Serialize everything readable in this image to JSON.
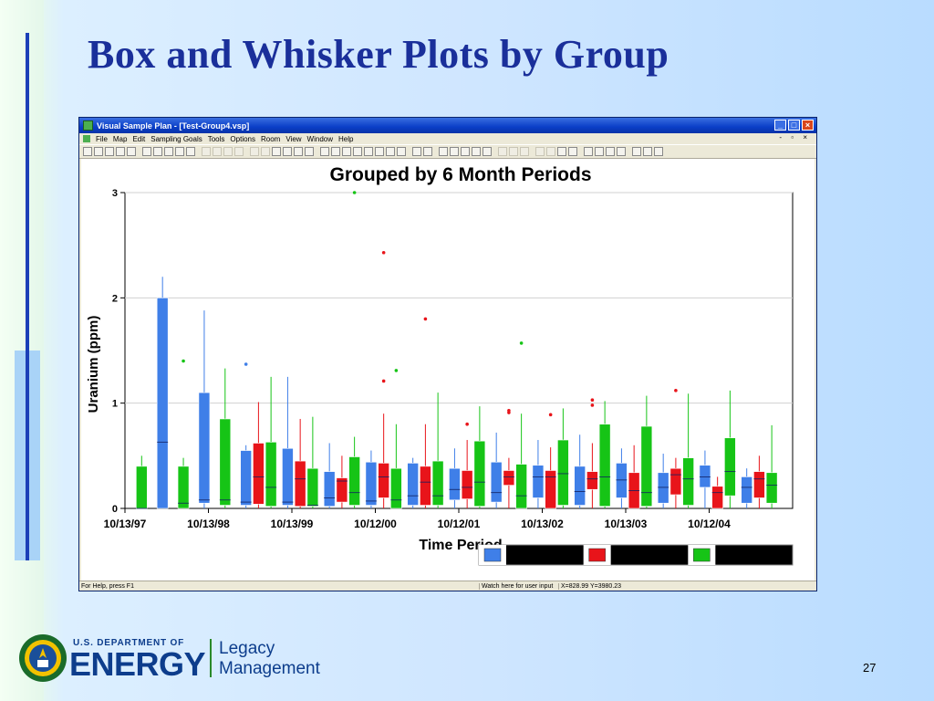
{
  "slide": {
    "title": "Box and Whisker Plots by Group",
    "page_number": "27",
    "footer": {
      "dept_small": "U.S. DEPARTMENT OF",
      "dept_big": "ENERGY",
      "legacy_line1": "Legacy",
      "legacy_line2": "Management"
    }
  },
  "window": {
    "title": "Visual Sample Plan - [Test-Group4.vsp]",
    "menus": [
      "File",
      "Map",
      "Edit",
      "Sampling Goals",
      "Tools",
      "Options",
      "Room",
      "View",
      "Window",
      "Help"
    ],
    "status": {
      "help": "For Help, press F1",
      "input": "Watch here for user input",
      "coords": "X=828.99 Y=3980.23"
    }
  },
  "colors": {
    "blue": "#3f7fe8",
    "red": "#e8141a",
    "green": "#16c416",
    "title_blue": "#1a2f9a"
  },
  "chart_data": {
    "type": "box",
    "title": "Grouped by 6 Month Periods",
    "xlabel": "Time Period",
    "ylabel": "Uranium (ppm)",
    "ylim": [
      0,
      3
    ],
    "yticks": [
      0,
      1,
      2,
      3
    ],
    "xticks": [
      "10/13/97",
      "10/13/98",
      "10/13/99",
      "10/12/00",
      "10/12/01",
      "10/13/02",
      "10/13/03",
      "10/12/04"
    ],
    "x_range": [
      0,
      16
    ],
    "grid": "horizontal",
    "legend_position": "bottom-right",
    "series_colors": [
      "blue",
      "red",
      "green"
    ],
    "boxes": [
      {
        "x": 0.4,
        "g": "green",
        "min": 0.0,
        "q1": 0.0,
        "med": 0.0,
        "q3": 0.4,
        "max": 0.5,
        "out": []
      },
      {
        "x": 0.9,
        "g": "blue",
        "min": 0.0,
        "q1": 0.0,
        "med": 0.63,
        "q3": 2.0,
        "max": 2.2,
        "out": []
      },
      {
        "x": 1.4,
        "g": "green",
        "min": 0.0,
        "q1": 0.0,
        "med": 0.05,
        "q3": 0.4,
        "max": 0.48,
        "out": [
          1.4
        ]
      },
      {
        "x": 1.9,
        "g": "blue",
        "min": 0.0,
        "q1": 0.05,
        "med": 0.08,
        "q3": 1.1,
        "max": 1.88,
        "out": []
      },
      {
        "x": 2.4,
        "g": "green",
        "min": 0.0,
        "q1": 0.03,
        "med": 0.08,
        "q3": 0.85,
        "max": 1.33,
        "out": []
      },
      {
        "x": 2.9,
        "g": "blue",
        "min": 0.0,
        "q1": 0.03,
        "med": 0.06,
        "q3": 0.55,
        "max": 0.6,
        "out": [
          1.37
        ]
      },
      {
        "x": 3.2,
        "g": "red",
        "min": 0.0,
        "q1": 0.04,
        "med": 0.3,
        "q3": 0.62,
        "max": 1.01,
        "out": []
      },
      {
        "x": 3.5,
        "g": "green",
        "min": 0.0,
        "q1": 0.02,
        "med": 0.2,
        "q3": 0.63,
        "max": 1.25,
        "out": []
      },
      {
        "x": 3.9,
        "g": "blue",
        "min": 0.0,
        "q1": 0.03,
        "med": 0.06,
        "q3": 0.57,
        "max": 1.25,
        "out": []
      },
      {
        "x": 4.2,
        "g": "red",
        "min": 0.0,
        "q1": 0.02,
        "med": 0.28,
        "q3": 0.45,
        "max": 0.85,
        "out": []
      },
      {
        "x": 4.5,
        "g": "green",
        "min": 0.0,
        "q1": 0.02,
        "med": 0.03,
        "q3": 0.38,
        "max": 0.87,
        "out": []
      },
      {
        "x": 4.9,
        "g": "blue",
        "min": 0.0,
        "q1": 0.02,
        "med": 0.1,
        "q3": 0.35,
        "max": 0.62,
        "out": []
      },
      {
        "x": 5.2,
        "g": "red",
        "min": 0.0,
        "q1": 0.06,
        "med": 0.26,
        "q3": 0.29,
        "max": 0.5,
        "out": []
      },
      {
        "x": 5.5,
        "g": "green",
        "min": 0.0,
        "q1": 0.03,
        "med": 0.15,
        "q3": 0.49,
        "max": 0.68,
        "out": [
          3.0
        ]
      },
      {
        "x": 5.9,
        "g": "blue",
        "min": 0.0,
        "q1": 0.03,
        "med": 0.07,
        "q3": 0.44,
        "max": 0.55,
        "out": []
      },
      {
        "x": 6.2,
        "g": "red",
        "min": 0.0,
        "q1": 0.1,
        "med": 0.3,
        "q3": 0.43,
        "max": 0.9,
        "out": [
          2.43,
          1.21
        ]
      },
      {
        "x": 6.5,
        "g": "green",
        "min": 0.0,
        "q1": 0.0,
        "med": 0.08,
        "q3": 0.38,
        "max": 0.8,
        "out": [
          1.31
        ]
      },
      {
        "x": 6.9,
        "g": "blue",
        "min": 0.0,
        "q1": 0.03,
        "med": 0.12,
        "q3": 0.43,
        "max": 0.48,
        "out": []
      },
      {
        "x": 7.2,
        "g": "red",
        "min": 0.0,
        "q1": 0.03,
        "med": 0.25,
        "q3": 0.4,
        "max": 0.8,
        "out": [
          1.8
        ]
      },
      {
        "x": 7.5,
        "g": "green",
        "min": 0.0,
        "q1": 0.03,
        "med": 0.12,
        "q3": 0.45,
        "max": 1.1,
        "out": []
      },
      {
        "x": 7.9,
        "g": "blue",
        "min": 0.0,
        "q1": 0.08,
        "med": 0.18,
        "q3": 0.38,
        "max": 0.57,
        "out": []
      },
      {
        "x": 8.2,
        "g": "red",
        "min": 0.0,
        "q1": 0.09,
        "med": 0.2,
        "q3": 0.36,
        "max": 0.65,
        "out": [
          0.8
        ]
      },
      {
        "x": 8.5,
        "g": "green",
        "min": 0.0,
        "q1": 0.02,
        "med": 0.25,
        "q3": 0.64,
        "max": 0.97,
        "out": []
      },
      {
        "x": 8.9,
        "g": "blue",
        "min": 0.0,
        "q1": 0.06,
        "med": 0.15,
        "q3": 0.44,
        "max": 0.72,
        "out": []
      },
      {
        "x": 9.2,
        "g": "red",
        "min": 0.0,
        "q1": 0.22,
        "med": 0.3,
        "q3": 0.36,
        "max": 0.48,
        "out": [
          0.93,
          0.91
        ]
      },
      {
        "x": 9.5,
        "g": "green",
        "min": 0.0,
        "q1": 0.0,
        "med": 0.12,
        "q3": 0.42,
        "max": 0.9,
        "out": [
          1.57
        ]
      },
      {
        "x": 9.9,
        "g": "blue",
        "min": 0.0,
        "q1": 0.1,
        "med": 0.3,
        "q3": 0.41,
        "max": 0.65,
        "out": []
      },
      {
        "x": 10.2,
        "g": "red",
        "min": 0.0,
        "q1": 0.0,
        "med": 0.3,
        "q3": 0.36,
        "max": 0.58,
        "out": [
          0.89
        ]
      },
      {
        "x": 10.5,
        "g": "green",
        "min": 0.0,
        "q1": 0.03,
        "med": 0.33,
        "q3": 0.65,
        "max": 0.95,
        "out": []
      },
      {
        "x": 10.9,
        "g": "blue",
        "min": 0.0,
        "q1": 0.03,
        "med": 0.16,
        "q3": 0.4,
        "max": 0.7,
        "out": []
      },
      {
        "x": 11.2,
        "g": "red",
        "min": 0.0,
        "q1": 0.18,
        "med": 0.28,
        "q3": 0.35,
        "max": 0.62,
        "out": [
          1.03,
          0.98
        ]
      },
      {
        "x": 11.5,
        "g": "green",
        "min": 0.0,
        "q1": 0.02,
        "med": 0.3,
        "q3": 0.8,
        "max": 1.02,
        "out": []
      },
      {
        "x": 11.9,
        "g": "blue",
        "min": 0.0,
        "q1": 0.1,
        "med": 0.27,
        "q3": 0.43,
        "max": 0.57,
        "out": []
      },
      {
        "x": 12.2,
        "g": "red",
        "min": 0.0,
        "q1": 0.0,
        "med": 0.17,
        "q3": 0.34,
        "max": 0.6,
        "out": []
      },
      {
        "x": 12.5,
        "g": "green",
        "min": 0.0,
        "q1": 0.02,
        "med": 0.15,
        "q3": 0.78,
        "max": 1.07,
        "out": []
      },
      {
        "x": 12.9,
        "g": "blue",
        "min": 0.0,
        "q1": 0.05,
        "med": 0.2,
        "q3": 0.34,
        "max": 0.52,
        "out": []
      },
      {
        "x": 13.2,
        "g": "red",
        "min": 0.0,
        "q1": 0.13,
        "med": 0.32,
        "q3": 0.38,
        "max": 0.48,
        "out": [
          1.12
        ]
      },
      {
        "x": 13.5,
        "g": "green",
        "min": 0.0,
        "q1": 0.03,
        "med": 0.28,
        "q3": 0.48,
        "max": 1.09,
        "out": []
      },
      {
        "x": 13.9,
        "g": "blue",
        "min": 0.0,
        "q1": 0.2,
        "med": 0.3,
        "q3": 0.41,
        "max": 0.55,
        "out": []
      },
      {
        "x": 14.2,
        "g": "red",
        "min": 0.0,
        "q1": 0.0,
        "med": 0.15,
        "q3": 0.21,
        "max": 0.3,
        "out": []
      },
      {
        "x": 14.5,
        "g": "green",
        "min": 0.0,
        "q1": 0.12,
        "med": 0.35,
        "q3": 0.67,
        "max": 1.12,
        "out": []
      },
      {
        "x": 14.9,
        "g": "blue",
        "min": 0.0,
        "q1": 0.05,
        "med": 0.2,
        "q3": 0.3,
        "max": 0.38,
        "out": []
      },
      {
        "x": 15.2,
        "g": "red",
        "min": 0.0,
        "q1": 0.1,
        "med": 0.28,
        "q3": 0.35,
        "max": 0.5,
        "out": []
      },
      {
        "x": 15.5,
        "g": "green",
        "min": 0.0,
        "q1": 0.05,
        "med": 0.22,
        "q3": 0.34,
        "max": 0.79,
        "out": []
      }
    ]
  }
}
